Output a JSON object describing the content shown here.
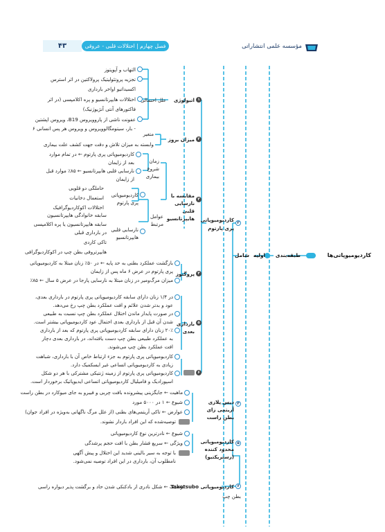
{
  "header": {
    "publisher": "مؤسسه علمی انتشاراتی",
    "chapter": "فصل چهارم | اختلالات قلبی - عروقی",
    "page_number": "۴۳",
    "brand_color": "#2eb3e0"
  },
  "root": {
    "title": "کاردیومیوپاتی‌ها",
    "classification": "طبقه‌بندی",
    "primary": "اولیه",
    "includes": "شامل"
  },
  "peripartum": {
    "title": "کاردیومیوپاتی پری پارتوم",
    "etiology": {
      "label": "اتیولوژی",
      "possible_causes": "علل احتمالی",
      "items": [
        "التهاب و آپوپتوز",
        "تجزیه پروتئولیتیک پرولاکتین در اثر استرس",
        "اکسیداتیو اواخر بارداری",
        "اختلالات هایپرتانسیو و پره اکلامپسی (در اثر",
        "فاکتورهای آنتی آنژیوژنیک)",
        "عفونت ناشی از پاروویروس B19، ویروس اپشتین",
        "- بار، سیتومگالوویروس و ویروس هر پس انسانی ۶"
      ]
    },
    "incidence": {
      "label": "میزان بروز",
      "items": [
        "متغیر",
        "وابسته به میزان تلاش و دقت جهت کشف علت بیماری"
      ]
    },
    "onset": {
      "label": "زمان شروع بیماری",
      "items": [
        "کاردیومیوپاتی پری پارتوم ← در تمام موارد",
        "بعد از زایمان",
        "نارسایی قلبی هایپرتانسیو ← ۸۵٪ موارد قبل",
        "از زایمان"
      ]
    },
    "comparison": {
      "label": "مقایسه با نارسایی قلبی هایپرتانسیو",
      "factors": "عوامل مرتبط",
      "ppcm_label": "کاردیومیوپاتی پری پارتوم",
      "ppcm_items": [
        "حاملگی دو قلویی",
        "استعمال دخانیات",
        "اختلالات اکوکاردیوگرافیک"
      ],
      "hf_label": "نارسایی قلبی هایپرتانسیو",
      "hf_items": [
        "سابقه خانوادگی هایپرتانسیون",
        "سابقه هایپرتانسیون یا پره اکلامپسی",
        "در بارداری قبلی",
        "تاکی کاردی",
        "هایپرتروفی بطن چپ در اکوکاردیوگرافی"
      ]
    },
    "prognosis": {
      "label": "پروگنوز",
      "items": [
        "بازگشت عملکرد بطنی به حد پایه ← در ۵۰٪ زنان مبتلا به کاردیومیوپاتی",
        "پری پارتوم در عرض ۶ ماه پس از زایمان",
        "میزان مرگ‌ومیر در زنان مبتلا به نارسایی پارجا در عرض ۵ سال ← ۸۵٪"
      ]
    },
    "next_pregnancy": {
      "label": "بارداری بعدی",
      "items": [
        "در ۱/۴ زنان دارای سابقه کاردیومیوپاتی پری پارتوم در بارداری بعدی،",
        "عود و بدتر شدن علائم و افت عملکرد بطن چپ رخ می‌دهد.",
        "در صورت پایدار ماندن اختلال عملکرد بطن چپ نسبت به طبیعی",
        "شدن آن قبل از بارداری بعدی احتمال عود کاردیومیوپاتی بیشتر است.",
        "۲۰٪ زنان دارای سابقه کاردیومیوپاتی پری پارتوم که بعد از بارداری",
        "به عملکرد طبیعی بطن چپ دست یافته‌اند، در بارداری بعدی دچار",
        "افت عملکرد بطن چپ می‌شوند."
      ]
    },
    "notes": [
      "کاردیومیوپاتی پری پارتوم به جزء ارتباط خاص آن با بارداری، شباهت",
      "زیادی به کاردیومیوپاتی اتساعی غیر ایسکمیک دارد.",
      "کاردیومیوپاتی پری پارتوم از زمینه ژنتیکی مشترکی با هر دو شکل",
      "اسپورادیک و فامیلیال کاردیومیوپاتی اتساعی ایدیوپاتیک برخوردار است."
    ],
    "note_tag": "نکته"
  },
  "arvc": {
    "title": "دیس پلازی آریتمی زای بطن راست",
    "items": [
      "ماهیت ← جایگزینی پیشرونده بافت چربی و فیبرو به جای میوکارد در بطن راست",
      "شیوع ← ۱ در ۵۰۰۰ مورد",
      "عوارض ← تاکی آریتمی‌های بطنی (از علل مرگ ناگهانی به‌ویژه در افراد جوان)",
      "توصیه‌شده که این افراد باردار نشوند."
    ]
  },
  "restrictive": {
    "title": "کاردیومیوپاتی محدود کننده (رستریکتیو)",
    "items": [
      "شیوع ← نادرترین نوع کاردیومیوپاتی",
      "ویژگی ← سریع فشار بطن با افت حجم پرشدگی",
      "با توجه به سیر بالینی شدید این اختلال و پیش آگهی",
      "نامطلوب آن، بارداری در این افراد توصیه نمی‌شود."
    ]
  },
  "takotsubo": {
    "title": "کاردیومیوپاتی Takotsubo",
    "items": [
      "توصیف ← شکل نادری از بادکنکی شدن حاد و برگشت پذیر دیواره راسی",
      "بطن چپ"
    ]
  }
}
